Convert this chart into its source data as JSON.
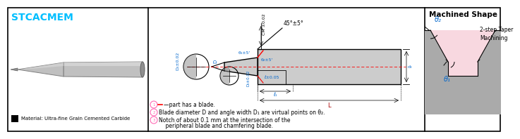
{
  "title": "STCACMEM",
  "title_color": "#00BFFF",
  "left_label": "Material: Ultra-fine Grain Cemented Carbide",
  "right_title": "Machined Shape",
  "right_subtitle1": "2-step Taper",
  "right_subtitle2": "Machining",
  "note1_red": "—part has a blade.",
  "note2": "Blade diameter D and angle width D₁ are virtual points on θ₂.",
  "note3": "Notch of about 0.1 mm at the intersection of the",
  "note4": "    peripheral blade and chamfering blade.",
  "angle_label": "45°±5°",
  "theta1": "θ₁",
  "theta2": "θ₂",
  "cm_label": "CM ±0.02",
  "d1_label": "D₁±0.02",
  "d_label": "D",
  "dn_label": "D₁±0.02",
  "l1_label": "ℓ₁",
  "l_label": "L",
  "lpm_label": "ℓ±0.05",
  "border_color": "#000000",
  "bg_color": "#FFFFFF",
  "tool_gray": "#C0C0C0",
  "tool_light": "#E0E0E0",
  "tool_dark": "#909090",
  "diagram_gray": "#CCCCCC",
  "pink_fill": "#F8D8E0",
  "groove_gray": "#AAAAAA",
  "red_color": "#FF0000",
  "blue_color": "#0066CC",
  "pink_marker": "#FF69B4"
}
